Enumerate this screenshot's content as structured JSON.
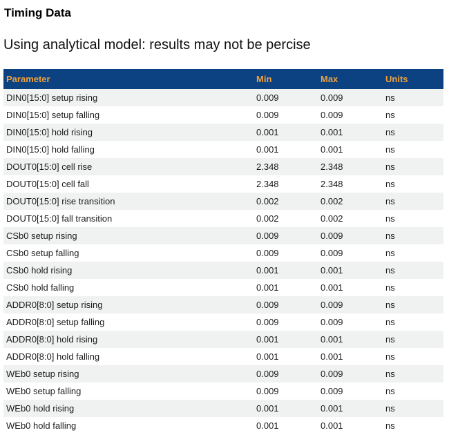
{
  "page": {
    "title": "Timing Data",
    "subtitle": "Using analytical model: results may not be percise"
  },
  "table": {
    "columns": [
      "Parameter",
      "Min",
      "Max",
      "Units"
    ],
    "rows": [
      [
        "DIN0[15:0] setup rising",
        "0.009",
        "0.009",
        "ns"
      ],
      [
        "DIN0[15:0] setup falling",
        "0.009",
        "0.009",
        "ns"
      ],
      [
        "DIN0[15:0] hold rising",
        "0.001",
        "0.001",
        "ns"
      ],
      [
        "DIN0[15:0] hold falling",
        "0.001",
        "0.001",
        "ns"
      ],
      [
        "DOUT0[15:0] cell rise",
        "2.348",
        "2.348",
        "ns"
      ],
      [
        "DOUT0[15:0] cell fall",
        "2.348",
        "2.348",
        "ns"
      ],
      [
        "DOUT0[15:0] rise transition",
        "0.002",
        "0.002",
        "ns"
      ],
      [
        "DOUT0[15:0] fall transition",
        "0.002",
        "0.002",
        "ns"
      ],
      [
        "CSb0 setup rising",
        "0.009",
        "0.009",
        "ns"
      ],
      [
        "CSb0 setup falling",
        "0.009",
        "0.009",
        "ns"
      ],
      [
        "CSb0 hold rising",
        "0.001",
        "0.001",
        "ns"
      ],
      [
        "CSb0 hold falling",
        "0.001",
        "0.001",
        "ns"
      ],
      [
        "ADDR0[8:0] setup rising",
        "0.009",
        "0.009",
        "ns"
      ],
      [
        "ADDR0[8:0] setup falling",
        "0.009",
        "0.009",
        "ns"
      ],
      [
        "ADDR0[8:0] hold rising",
        "0.001",
        "0.001",
        "ns"
      ],
      [
        "ADDR0[8:0] hold falling",
        "0.001",
        "0.001",
        "ns"
      ],
      [
        "WEb0 setup rising",
        "0.009",
        "0.009",
        "ns"
      ],
      [
        "WEb0 setup falling",
        "0.009",
        "0.009",
        "ns"
      ],
      [
        "WEb0 hold rising",
        "0.001",
        "0.001",
        "ns"
      ],
      [
        "WEb0 hold falling",
        "0.001",
        "0.001",
        "ns"
      ]
    ]
  },
  "colors": {
    "header_bg": "#0d4282",
    "header_text": "#efa23c",
    "row_alt_bg": "#f0f1f1",
    "row_bg": "#ffffff",
    "body_text": "#1b1b1b"
  }
}
